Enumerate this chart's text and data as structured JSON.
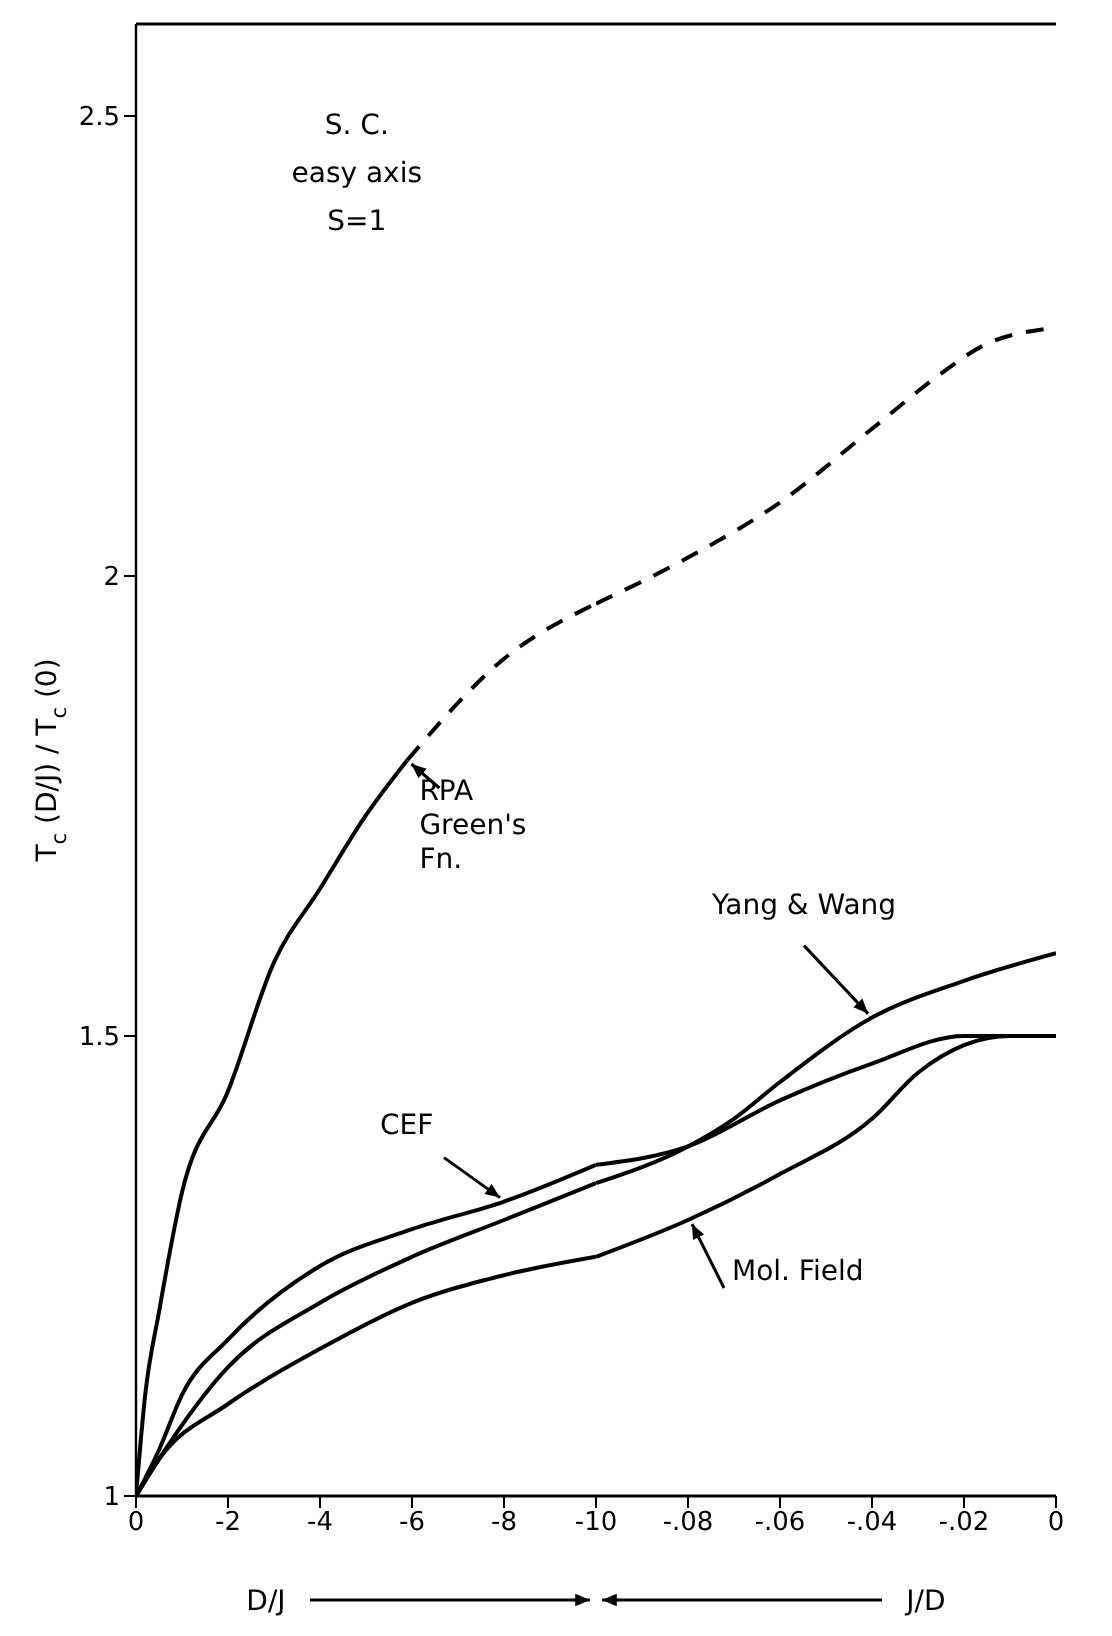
{
  "chart_data": [
    {
      "type": "line",
      "xlabel": "D/J",
      "ylabel": "T$_{c}$ (D/J) / T$_{c}$ (0)",
      "xlim": [
        0,
        -10
      ],
      "xticks": [
        0,
        -2,
        -4,
        -6,
        -8,
        -10
      ],
      "ylim": [
        1,
        2.6
      ],
      "yticks": [
        1,
        1.5,
        2,
        2.5
      ],
      "line_style": "solid",
      "annotations": [
        "S. C.",
        "easy axis",
        "S=1"
      ],
      "series": [
        {
          "name": "RPA Green's Fn.",
          "color": "#000000",
          "x": [
            0,
            -0.2,
            -0.5,
            -1,
            -2,
            -3,
            -4,
            -5,
            -5.9
          ],
          "values": [
            1,
            1.11,
            1.2,
            1.33,
            1.44,
            1.58,
            1.66,
            1.74,
            1.8
          ]
        },
        {
          "color": "#000000",
          "line_style": "dashed",
          "x": [
            -5.9,
            -8,
            -10
          ],
          "values": [
            1.8,
            1.91,
            1.97
          ]
        },
        {
          "name": "CEF",
          "color": "#000000",
          "x": [
            0,
            -0.5,
            -1,
            -2,
            -4,
            -6,
            -8,
            -10
          ],
          "values": [
            1,
            1.05,
            1.11,
            1.17,
            1.25,
            1.29,
            1.32,
            1.36
          ]
        },
        {
          "color": "#000000",
          "x": [
            0,
            -0.5,
            -2,
            -4,
            -6,
            -8,
            -10
          ],
          "values": [
            1,
            1.04,
            1.14,
            1.21,
            1.26,
            1.3,
            1.34
          ]
        },
        {
          "color": "#000000",
          "x": [
            0,
            -0.5,
            -2,
            -4,
            -6,
            -8,
            -10
          ],
          "values": [
            1,
            1.04,
            1.1,
            1.16,
            1.21,
            1.24,
            1.26
          ]
        }
      ]
    },
    {
      "type": "line",
      "xlabel": "J/D",
      "xlim": [
        -0.1,
        0
      ],
      "xticks": [
        {
          "value": -0.08,
          "label": "-.08"
        },
        {
          "value": -0.06,
          "label": "-.06"
        },
        {
          "value": -0.04,
          "label": "-.04"
        },
        {
          "value": -0.02,
          "label": "-.02"
        },
        0
      ],
      "ylim": [
        1,
        2.6
      ],
      "tick_labels": "x",
      "line_style": "solid",
      "series": [
        {
          "color": "#000000",
          "line_style": "dashed",
          "x": [
            -0.1,
            -0.08,
            -0.06,
            -0.04,
            -0.025,
            -0.016,
            0
          ],
          "values": [
            1.97,
            2.02,
            2.08,
            2.16,
            2.22,
            2.25,
            2.27
          ]
        },
        {
          "color": "#000000",
          "x": [
            -0.1,
            -0.08,
            -0.06,
            -0.04,
            -0.02,
            -0.01,
            0
          ],
          "values": [
            1.36,
            1.38,
            1.43,
            1.47,
            1.5,
            1.5,
            1.5
          ]
        },
        {
          "name": "Yang & Wang",
          "color": "#000000",
          "x": [
            -0.1,
            -0.08,
            -0.07,
            -0.06,
            -0.04,
            -0.02,
            0
          ],
          "values": [
            1.34,
            1.38,
            1.41,
            1.45,
            1.52,
            1.56,
            1.59
          ]
        },
        {
          "name": "Mol. Field",
          "color": "#000000",
          "x": [
            -0.1,
            -0.08,
            -0.06,
            -0.04,
            -0.03,
            -0.02,
            -0.01,
            0
          ],
          "values": [
            1.26,
            1.3,
            1.35,
            1.41,
            1.46,
            1.49,
            1.5,
            1.5
          ]
        }
      ]
    }
  ]
}
